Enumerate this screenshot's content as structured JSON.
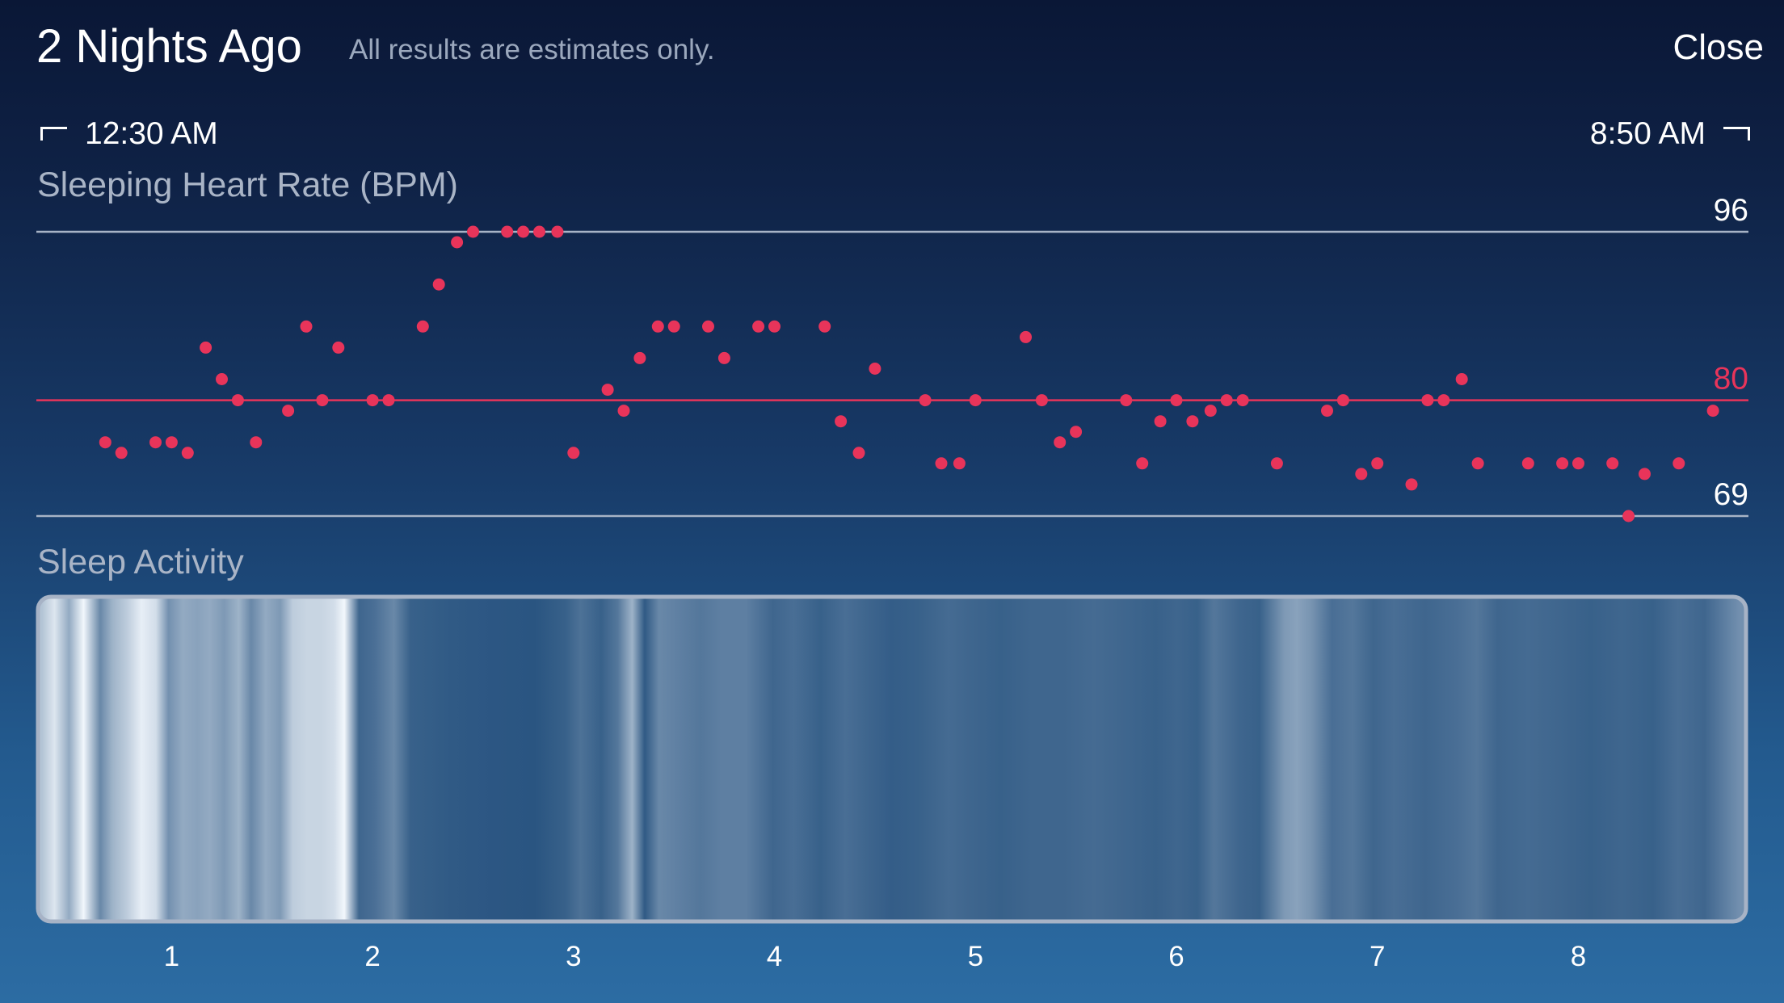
{
  "header": {
    "title": "2 Nights Ago",
    "subtitle": "All results are estimates only.",
    "close_label": "Close"
  },
  "time_range": {
    "start": "12:30 AM",
    "end": "8:50 AM"
  },
  "colors": {
    "heart_rate_dot": "#e8345a",
    "average_line": "#e8345a",
    "reference_line": "#a7b3c6",
    "activity_frame": "#a7b3c6"
  },
  "chart_data": [
    {
      "type": "scatter",
      "title": "Sleeping Heart Rate (BPM)",
      "ylim": [
        69,
        96
      ],
      "reference_lines": [
        {
          "value": 96,
          "label": "96",
          "kind": "max"
        },
        {
          "value": 80,
          "label": "80",
          "kind": "average"
        },
        {
          "value": 69,
          "label": "69",
          "kind": "min"
        }
      ],
      "xlim": [
        0.5,
        8.75
      ],
      "series": [
        {
          "points": [
            {
              "x": 0.67,
              "y": 76
            },
            {
              "x": 0.75,
              "y": 75
            },
            {
              "x": 0.92,
              "y": 76
            },
            {
              "x": 1.0,
              "y": 76
            },
            {
              "x": 1.08,
              "y": 75
            },
            {
              "x": 1.17,
              "y": 85
            },
            {
              "x": 1.25,
              "y": 82
            },
            {
              "x": 1.33,
              "y": 80
            },
            {
              "x": 1.42,
              "y": 76
            },
            {
              "x": 1.58,
              "y": 79
            },
            {
              "x": 1.67,
              "y": 87
            },
            {
              "x": 1.75,
              "y": 80
            },
            {
              "x": 1.83,
              "y": 85
            },
            {
              "x": 2.0,
              "y": 80
            },
            {
              "x": 2.08,
              "y": 80
            },
            {
              "x": 2.25,
              "y": 87
            },
            {
              "x": 2.33,
              "y": 91
            },
            {
              "x": 2.42,
              "y": 95
            },
            {
              "x": 2.5,
              "y": 96
            },
            {
              "x": 2.67,
              "y": 96
            },
            {
              "x": 2.75,
              "y": 96
            },
            {
              "x": 2.83,
              "y": 96
            },
            {
              "x": 2.92,
              "y": 96
            },
            {
              "x": 3.0,
              "y": 75
            },
            {
              "x": 3.17,
              "y": 81
            },
            {
              "x": 3.25,
              "y": 79
            },
            {
              "x": 3.33,
              "y": 84
            },
            {
              "x": 3.42,
              "y": 87
            },
            {
              "x": 3.5,
              "y": 87
            },
            {
              "x": 3.67,
              "y": 87
            },
            {
              "x": 3.75,
              "y": 84
            },
            {
              "x": 3.92,
              "y": 87
            },
            {
              "x": 4.0,
              "y": 87
            },
            {
              "x": 4.25,
              "y": 87
            },
            {
              "x": 4.33,
              "y": 78
            },
            {
              "x": 4.42,
              "y": 75
            },
            {
              "x": 4.5,
              "y": 83
            },
            {
              "x": 4.75,
              "y": 80
            },
            {
              "x": 4.83,
              "y": 74
            },
            {
              "x": 4.92,
              "y": 74
            },
            {
              "x": 5.0,
              "y": 80
            },
            {
              "x": 5.25,
              "y": 86
            },
            {
              "x": 5.33,
              "y": 80
            },
            {
              "x": 5.42,
              "y": 76
            },
            {
              "x": 5.5,
              "y": 77
            },
            {
              "x": 5.75,
              "y": 80
            },
            {
              "x": 5.83,
              "y": 74
            },
            {
              "x": 5.92,
              "y": 78
            },
            {
              "x": 6.0,
              "y": 80
            },
            {
              "x": 6.08,
              "y": 78
            },
            {
              "x": 6.17,
              "y": 79
            },
            {
              "x": 6.25,
              "y": 80
            },
            {
              "x": 6.33,
              "y": 80
            },
            {
              "x": 6.5,
              "y": 74
            },
            {
              "x": 6.75,
              "y": 79
            },
            {
              "x": 6.83,
              "y": 80
            },
            {
              "x": 6.92,
              "y": 73
            },
            {
              "x": 7.0,
              "y": 74
            },
            {
              "x": 7.17,
              "y": 72
            },
            {
              "x": 7.25,
              "y": 80
            },
            {
              "x": 7.33,
              "y": 80
            },
            {
              "x": 7.42,
              "y": 82
            },
            {
              "x": 7.5,
              "y": 74
            },
            {
              "x": 7.75,
              "y": 74
            },
            {
              "x": 7.92,
              "y": 74
            },
            {
              "x": 8.0,
              "y": 74
            },
            {
              "x": 8.17,
              "y": 74
            },
            {
              "x": 8.25,
              "y": 69
            },
            {
              "x": 8.33,
              "y": 73
            },
            {
              "x": 8.5,
              "y": 74
            },
            {
              "x": 8.67,
              "y": 79
            }
          ]
        }
      ]
    },
    {
      "type": "heatmap",
      "title": "Sleep Activity",
      "xlim": [
        0.5,
        8.75
      ],
      "x_ticks": [
        "1",
        "2",
        "3",
        "4",
        "5",
        "6",
        "7",
        "8"
      ],
      "x_tick_values": [
        1,
        2,
        3,
        4,
        5,
        6,
        7,
        8
      ],
      "bands": [
        {
          "x": 0.52,
          "intensity": 0.7
        },
        {
          "x": 0.58,
          "intensity": 0.9
        },
        {
          "x": 0.65,
          "intensity": 0.55
        },
        {
          "x": 0.72,
          "intensity": 1.0
        },
        {
          "x": 0.8,
          "intensity": 0.35
        },
        {
          "x": 0.86,
          "intensity": 0.6
        },
        {
          "x": 0.93,
          "intensity": 0.75
        },
        {
          "x": 1.0,
          "intensity": 0.95
        },
        {
          "x": 1.07,
          "intensity": 0.85
        },
        {
          "x": 1.13,
          "intensity": 0.4
        },
        {
          "x": 1.2,
          "intensity": 0.55
        },
        {
          "x": 1.27,
          "intensity": 0.5
        },
        {
          "x": 1.33,
          "intensity": 0.55
        },
        {
          "x": 1.4,
          "intensity": 0.45
        },
        {
          "x": 1.47,
          "intensity": 0.6
        },
        {
          "x": 1.53,
          "intensity": 0.35
        },
        {
          "x": 1.6,
          "intensity": 0.55
        },
        {
          "x": 1.67,
          "intensity": 0.45
        },
        {
          "x": 1.73,
          "intensity": 0.75
        },
        {
          "x": 1.8,
          "intensity": 0.8
        },
        {
          "x": 1.87,
          "intensity": 0.8
        },
        {
          "x": 1.93,
          "intensity": 0.85
        },
        {
          "x": 1.98,
          "intensity": 1.0
        },
        {
          "x": 2.05,
          "intensity": 0.15
        },
        {
          "x": 2.12,
          "intensity": 0.2
        },
        {
          "x": 2.22,
          "intensity": 0.35
        },
        {
          "x": 2.3,
          "intensity": 0.12
        },
        {
          "x": 2.5,
          "intensity": 0.08
        },
        {
          "x": 2.7,
          "intensity": 0.06
        },
        {
          "x": 2.9,
          "intensity": 0.05
        },
        {
          "x": 3.05,
          "intensity": 0.12
        },
        {
          "x": 3.12,
          "intensity": 0.22
        },
        {
          "x": 3.22,
          "intensity": 0.12
        },
        {
          "x": 3.3,
          "intensity": 0.25
        },
        {
          "x": 3.37,
          "intensity": 0.6
        },
        {
          "x": 3.43,
          "intensity": 0.08
        },
        {
          "x": 3.5,
          "intensity": 0.35
        },
        {
          "x": 3.6,
          "intensity": 0.3
        },
        {
          "x": 3.7,
          "intensity": 0.25
        },
        {
          "x": 3.8,
          "intensity": 0.3
        },
        {
          "x": 3.92,
          "intensity": 0.3
        },
        {
          "x": 4.05,
          "intensity": 0.15
        },
        {
          "x": 4.15,
          "intensity": 0.2
        },
        {
          "x": 4.28,
          "intensity": 0.12
        },
        {
          "x": 4.4,
          "intensity": 0.2
        },
        {
          "x": 4.5,
          "intensity": 0.15
        },
        {
          "x": 4.62,
          "intensity": 0.1
        },
        {
          "x": 4.75,
          "intensity": 0.12
        },
        {
          "x": 4.9,
          "intensity": 0.18
        },
        {
          "x": 5.0,
          "intensity": 0.15
        },
        {
          "x": 5.15,
          "intensity": 0.12
        },
        {
          "x": 5.3,
          "intensity": 0.15
        },
        {
          "x": 5.45,
          "intensity": 0.15
        },
        {
          "x": 5.6,
          "intensity": 0.18
        },
        {
          "x": 5.75,
          "intensity": 0.15
        },
        {
          "x": 5.9,
          "intensity": 0.12
        },
        {
          "x": 6.0,
          "intensity": 0.15
        },
        {
          "x": 6.1,
          "intensity": 0.12
        },
        {
          "x": 6.18,
          "intensity": 0.25
        },
        {
          "x": 6.3,
          "intensity": 0.15
        },
        {
          "x": 6.4,
          "intensity": 0.12
        },
        {
          "x": 6.52,
          "intensity": 0.45
        },
        {
          "x": 6.58,
          "intensity": 0.5
        },
        {
          "x": 6.65,
          "intensity": 0.42
        },
        {
          "x": 6.75,
          "intensity": 0.2
        },
        {
          "x": 6.85,
          "intensity": 0.25
        },
        {
          "x": 6.95,
          "intensity": 0.15
        },
        {
          "x": 7.05,
          "intensity": 0.2
        },
        {
          "x": 7.2,
          "intensity": 0.15
        },
        {
          "x": 7.35,
          "intensity": 0.2
        },
        {
          "x": 7.45,
          "intensity": 0.25
        },
        {
          "x": 7.55,
          "intensity": 0.15
        },
        {
          "x": 7.7,
          "intensity": 0.18
        },
        {
          "x": 7.85,
          "intensity": 0.15
        },
        {
          "x": 8.0,
          "intensity": 0.12
        },
        {
          "x": 8.15,
          "intensity": 0.15
        },
        {
          "x": 8.3,
          "intensity": 0.12
        },
        {
          "x": 8.42,
          "intensity": 0.2
        },
        {
          "x": 8.55,
          "intensity": 0.15
        },
        {
          "x": 8.65,
          "intensity": 0.3
        },
        {
          "x": 8.72,
          "intensity": 0.4
        }
      ]
    }
  ]
}
